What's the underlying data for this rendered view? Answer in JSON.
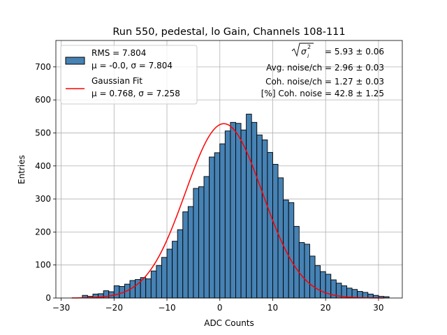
{
  "chart_data": {
    "type": "bar",
    "title": "Run 550, pedestal, lo Gain, Channels 108-111",
    "xlabel": "ADC Counts",
    "ylabel": "Entries",
    "xlim": [
      -31,
      34.5
    ],
    "ylim": [
      0,
      780
    ],
    "xticks": [
      -30,
      -20,
      -10,
      0,
      10,
      20,
      30
    ],
    "yticks": [
      0,
      100,
      200,
      300,
      400,
      500,
      600,
      700
    ],
    "grid": true,
    "bin_width": 1,
    "bin_start": -26,
    "counts": [
      8,
      5,
      12,
      13,
      22,
      19,
      37,
      35,
      42,
      53,
      56,
      62,
      58,
      82,
      98,
      123,
      148,
      172,
      207,
      261,
      277,
      332,
      337,
      368,
      427,
      440,
      467,
      506,
      532,
      529,
      509,
      557,
      532,
      494,
      479,
      441,
      405,
      364,
      297,
      289,
      217,
      168,
      163,
      127,
      98,
      80,
      72,
      55,
      45,
      37,
      30,
      26,
      20,
      17,
      12,
      8,
      5,
      4
    ],
    "bar_color": "#4682b4",
    "fit": {
      "name": "Gaussian Fit",
      "mu": 0.768,
      "sigma": 7.258,
      "amplitude": 528,
      "x_range": [
        -28,
        31
      ],
      "color": "#ff0000"
    },
    "legend": {
      "position": "top-left",
      "entries": [
        {
          "kind": "bar",
          "line1": "RMS = 7.804",
          "line2": "μ = -0.0, σ = 7.804"
        },
        {
          "kind": "line",
          "line1": "Gaussian Fit",
          "line2": "μ = 0.768, σ = 7.258"
        }
      ]
    },
    "annotations": [
      {
        "label": "= 5.93 ± 0.06",
        "sqrt_symbol": true
      },
      {
        "label": "Avg. noise/ch = 2.96 ± 0.03"
      },
      {
        "label": "Coh. noise/ch = 1.27 ± 0.03"
      },
      {
        "label": "[%] Coh. noise = 42.8 ± 1.25"
      }
    ]
  }
}
